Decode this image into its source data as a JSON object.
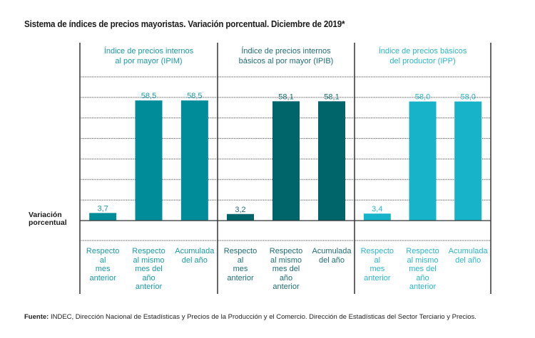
{
  "title": "Sistema de índices de precios mayoristas. Variación porcentual. Diciembre de 2019*",
  "ylabel": [
    "Variación",
    "porcentual"
  ],
  "footer": {
    "label": "Fuente:",
    "text": " INDEC, Dirección Nacional de Estadísticas y Precios de la Producción y el Comercio. Dirección de Estadísticas del Sector Terciario y Precios."
  },
  "chart_data": {
    "type": "bar",
    "title": "Sistema de índices de precios mayoristas. Variación porcentual. Diciembre de 2019*",
    "ylabel": "Variación porcentual",
    "xlabel": "",
    "ylim": [
      0,
      70
    ],
    "grid": true,
    "decimal_separator": ",",
    "categories": [
      "Respecto al mes anterior",
      "Respecto al mismo mes del año anterior",
      "Acumulada del año"
    ],
    "category_lines": [
      [
        "Respecto",
        "al",
        "mes",
        "anterior"
      ],
      [
        "Respecto",
        "al mismo",
        "mes del",
        "año",
        "anterior"
      ],
      [
        "Acumulada",
        "del año"
      ]
    ],
    "series": [
      {
        "name": "Índice de precios internos al por mayor (IPIM)",
        "title_lines": [
          "Índice de precios internos",
          "al por mayor (IPIM)"
        ],
        "values": [
          3.7,
          58.5,
          58.5
        ],
        "labels": [
          "3,7",
          "58,5",
          "58,5"
        ],
        "color": "#008c99",
        "label_color": "#1a9aa6"
      },
      {
        "name": "Índice de precios internos básicos al por mayor (IPIB)",
        "title_lines": [
          "Índice de precios internos",
          "básicos al por mayor (IPIB)"
        ],
        "values": [
          3.2,
          58.1,
          58.1
        ],
        "labels": [
          "3,2",
          "58,1",
          "58,1"
        ],
        "color": "#00646b",
        "label_color": "#1f6d74"
      },
      {
        "name": "Índice de precios básicos del productor (IPP)",
        "title_lines": [
          "Índice de precios básicos",
          "del productor (IPP)"
        ],
        "values": [
          3.4,
          58.0,
          58.0
        ],
        "labels": [
          "3,4",
          "58,0",
          "58,0"
        ],
        "color": "#17b3c8",
        "label_color": "#2bb6c9"
      }
    ]
  }
}
